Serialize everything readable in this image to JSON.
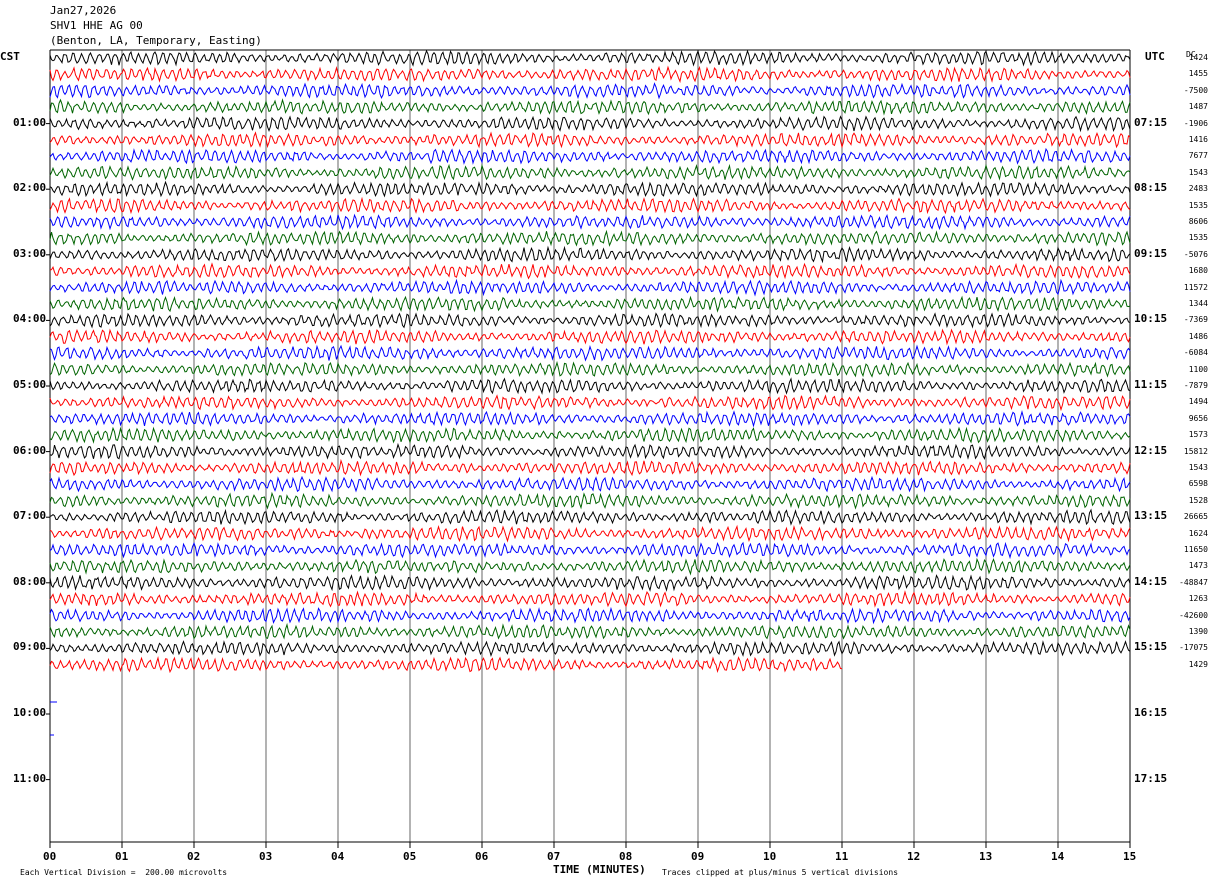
{
  "header": {
    "date": "Jan27,2026",
    "station": "SHV1 HHE AG 00",
    "location": "(Benton, LA, Temporary, Easting)"
  },
  "axes": {
    "left_tz": "CST",
    "right_tz": "UTC",
    "dc_label": "DC",
    "x_title": "TIME (MINUTES)"
  },
  "footer": {
    "scale_note": "Each Vertical Division =  200.00 microvolts",
    "clip_note": "Traces clipped at plus/minus 5 vertical divisions"
  },
  "chart_data": {
    "type": "line",
    "title": "SHV1 HHE AG 00",
    "xlabel": "TIME (MINUTES)",
    "ylabel": "",
    "xlim": [
      0,
      15
    ],
    "x_ticks": [
      "00",
      "01",
      "02",
      "03",
      "04",
      "05",
      "06",
      "07",
      "08",
      "09",
      "10",
      "11",
      "12",
      "13",
      "14",
      "15"
    ],
    "left_time_labels": [
      "01:00",
      "02:00",
      "03:00",
      "04:00",
      "05:00",
      "06:00",
      "07:00",
      "08:00",
      "09:00",
      "10:00",
      "11:00"
    ],
    "right_time_labels": [
      "07:15",
      "08:15",
      "09:15",
      "10:15",
      "11:15",
      "12:15",
      "13:15",
      "14:15",
      "15:15",
      "16:15",
      "17:15"
    ],
    "trace_colors": [
      "#000000",
      "#ff0000",
      "#0000ff",
      "#006400"
    ],
    "rows_per_hour": 4,
    "minutes_per_row": 15,
    "total_rows": 48,
    "recorded_rows": 38,
    "last_row_end_minute": 11,
    "dc_offsets": [
      "1424",
      "1455",
      "-7500",
      "1487",
      "-1906",
      "1416",
      "7677",
      "1543",
      "2483",
      "1535",
      "8606",
      "1535",
      "-5076",
      "1680",
      "11572",
      "1344",
      "-7369",
      "1486",
      "-6084",
      "1100",
      "-7879",
      "1494",
      "9656",
      "1573",
      "15812",
      "1543",
      "6598",
      "1528",
      "26665",
      "1624",
      "11650",
      "1473",
      "-48847",
      "1263",
      "-42600",
      "1390",
      "-17075",
      "1429"
    ]
  }
}
